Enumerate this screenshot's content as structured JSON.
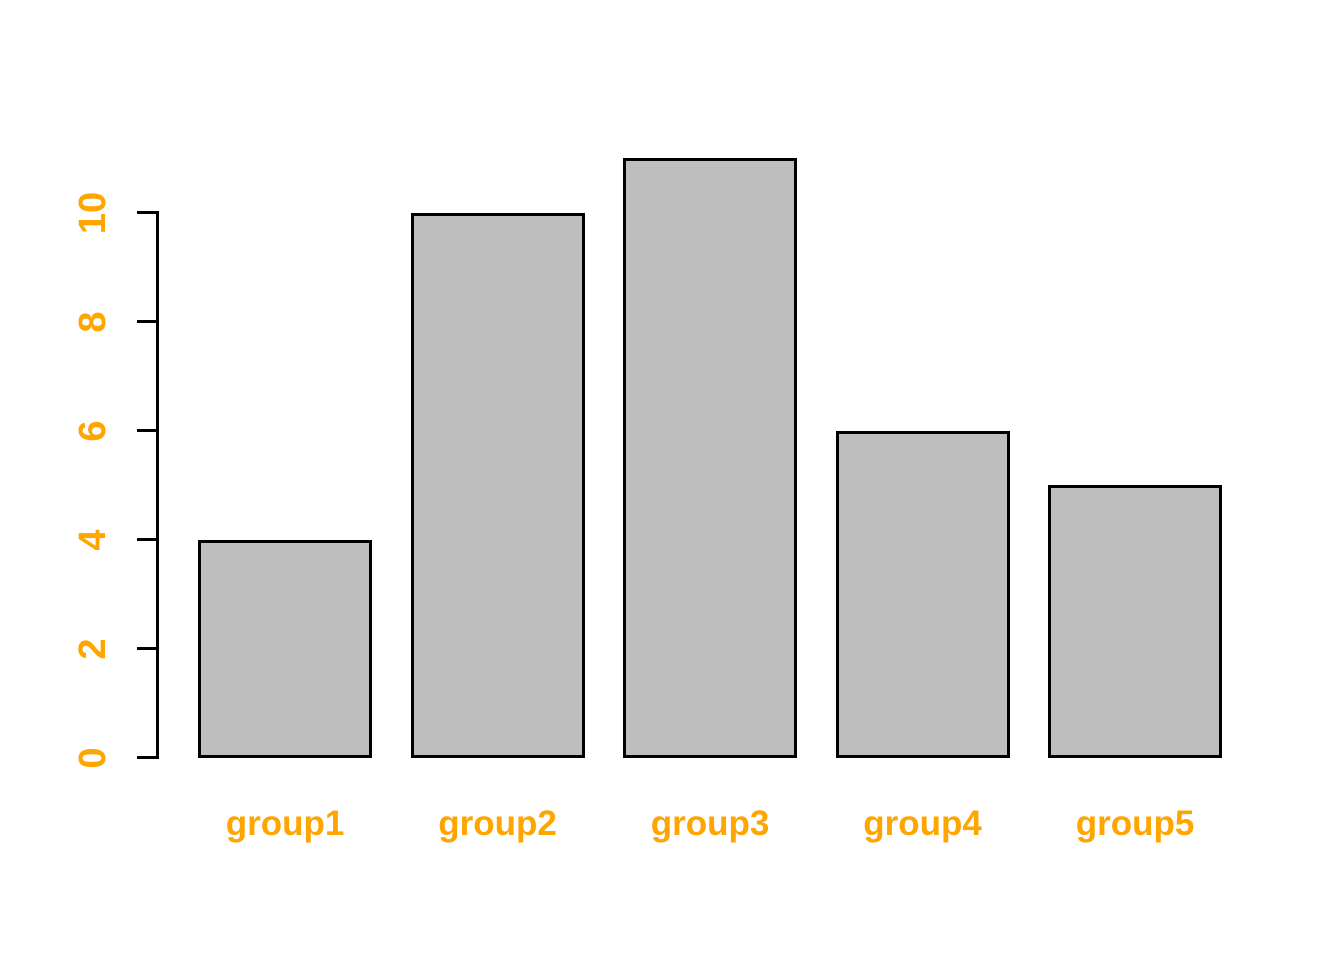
{
  "chart_data": {
    "type": "bar",
    "title": "",
    "xlabel": "",
    "ylabel": "",
    "categories": [
      "group1",
      "group2",
      "group3",
      "group4",
      "group5"
    ],
    "values": [
      4,
      10,
      11,
      6,
      5
    ],
    "yticks": [
      0,
      2,
      4,
      6,
      8,
      10
    ],
    "ylim": [
      0,
      11
    ],
    "grid": false,
    "legend": "none",
    "orientation": "vertical",
    "bar_fill_color": "#BEBEBE",
    "bar_border_color": "#000000",
    "axis_color": "#000000",
    "tick_label_color": "#FFA500",
    "tick_label_weight": "bold",
    "background_color": "#FFFFFF"
  }
}
